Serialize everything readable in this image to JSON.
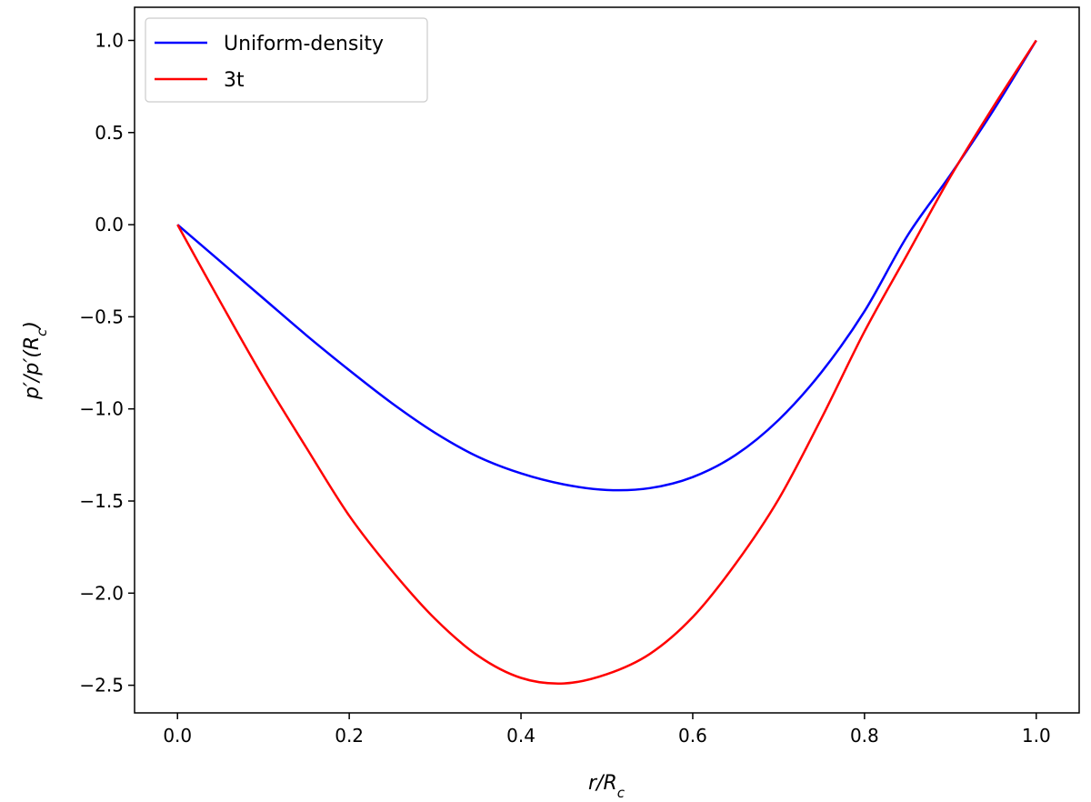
{
  "chart_data": {
    "type": "line",
    "title": "",
    "xlabel": "r/R_c",
    "ylabel": "p′/p′(R_c)",
    "xlim": [
      -0.05,
      1.05
    ],
    "ylim": [
      -2.65,
      1.18
    ],
    "xticks": [
      0.0,
      0.2,
      0.4,
      0.6,
      0.8,
      1.0
    ],
    "xtick_labels": [
      "0.0",
      "0.2",
      "0.4",
      "0.6",
      "0.8",
      "1.0"
    ],
    "yticks": [
      1.0,
      0.5,
      0.0,
      -0.5,
      -1.0,
      -1.5,
      -2.0,
      -2.5
    ],
    "ytick_labels": [
      "1.0",
      "0.5",
      "0.0",
      "−0.5",
      "−1.0",
      "−1.5",
      "−2.0",
      "−2.5"
    ],
    "grid": false,
    "legend": {
      "location": "top-left"
    },
    "series": [
      {
        "name": "Uniform-density",
        "color": "#0000ff",
        "x": [
          0.0,
          0.05,
          0.1,
          0.15,
          0.2,
          0.25,
          0.3,
          0.35,
          0.4,
          0.45,
          0.5,
          0.55,
          0.6,
          0.65,
          0.7,
          0.75,
          0.8,
          0.85,
          0.9,
          0.95,
          1.0
        ],
        "y": [
          0.0,
          -0.2,
          -0.4,
          -0.6,
          -0.79,
          -0.97,
          -1.13,
          -1.26,
          -1.35,
          -1.41,
          -1.44,
          -1.43,
          -1.37,
          -1.25,
          -1.06,
          -0.8,
          -0.47,
          -0.06,
          0.27,
          0.62,
          1.0
        ]
      },
      {
        "name": "3t",
        "color": "#ff0000",
        "x": [
          0.0,
          0.05,
          0.1,
          0.15,
          0.2,
          0.25,
          0.3,
          0.35,
          0.4,
          0.45,
          0.5,
          0.55,
          0.6,
          0.65,
          0.7,
          0.75,
          0.8,
          0.85,
          0.9,
          0.95,
          1.0
        ],
        "y": [
          0.0,
          -0.42,
          -0.83,
          -1.21,
          -1.58,
          -1.88,
          -2.14,
          -2.34,
          -2.46,
          -2.49,
          -2.44,
          -2.33,
          -2.13,
          -1.84,
          -1.49,
          -1.05,
          -0.58,
          -0.16,
          0.26,
          0.64,
          1.0
        ]
      }
    ]
  }
}
